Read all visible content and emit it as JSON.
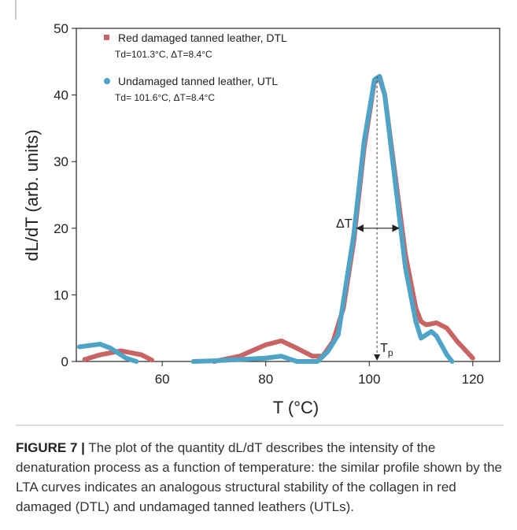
{
  "chart_data": {
    "type": "line",
    "xlabel": "T (°C)",
    "ylabel": "dL/dT (arb. units)",
    "xlim": [
      43.4,
      125.2
    ],
    "xticks": [
      60,
      80,
      100,
      120
    ],
    "ylim": [
      0,
      50
    ],
    "yticks": [
      0,
      10,
      20,
      30,
      40,
      50
    ],
    "series": [
      {
        "name": "Red damaged tanned leather, DTL",
        "note": "Td=101.3°C, ΔT=8.4°C",
        "color": "#c86464",
        "marker": "square",
        "x": [
          45,
          48,
          52,
          56,
          58,
          66,
          70,
          75,
          80,
          83,
          86,
          89,
          91,
          93,
          95,
          97,
          99,
          101,
          102,
          103,
          105,
          107,
          109,
          110,
          111,
          113,
          115,
          117,
          120
        ],
        "values": [
          0.3,
          1,
          1.6,
          1,
          0.2,
          null,
          0,
          0.8,
          2.5,
          3.1,
          2,
          0.8,
          0.8,
          3,
          8,
          18,
          32,
          42,
          42.5,
          40,
          28,
          16,
          8,
          6,
          5.5,
          5.8,
          5,
          3,
          0.5
        ]
      },
      {
        "name": "Undamaged tanned leather, UTL",
        "note": "Td= 101.6°C, ΔT=8.4°C",
        "color": "#4fa3c7",
        "marker": "circle",
        "x": [
          44,
          45,
          48,
          50,
          53,
          55,
          60,
          66,
          70,
          80,
          83,
          86,
          90,
          92,
          94,
          95,
          97,
          99,
          101,
          102,
          103,
          105,
          107,
          109,
          110,
          111,
          112,
          113,
          115,
          116
        ],
        "values": [
          2.2,
          2.3,
          2.6,
          2,
          0.5,
          0,
          null,
          0,
          0.1,
          0.5,
          0.8,
          0,
          0,
          1.5,
          4,
          9,
          19,
          33,
          42.3,
          42.8,
          40,
          27,
          14,
          6,
          3.5,
          4,
          4.5,
          3.8,
          1,
          0
        ]
      }
    ],
    "annotations": [
      {
        "text": "ΔT",
        "x": 97,
        "x2": 106,
        "y": 20
      },
      {
        "text": "T",
        "sub": "p",
        "x": 101.5,
        "y": 42.8
      }
    ]
  },
  "caption": {
    "label": "FIGURE 7 |",
    "text": "The plot of the quantity dL/dT describes the intensity of the denaturation process as a function of temperature: the similar profile shown by the LTA curves indicates an analogous structural stability of the collagen in red damaged (DTL) and undamaged tanned leathers (UTLs)."
  }
}
